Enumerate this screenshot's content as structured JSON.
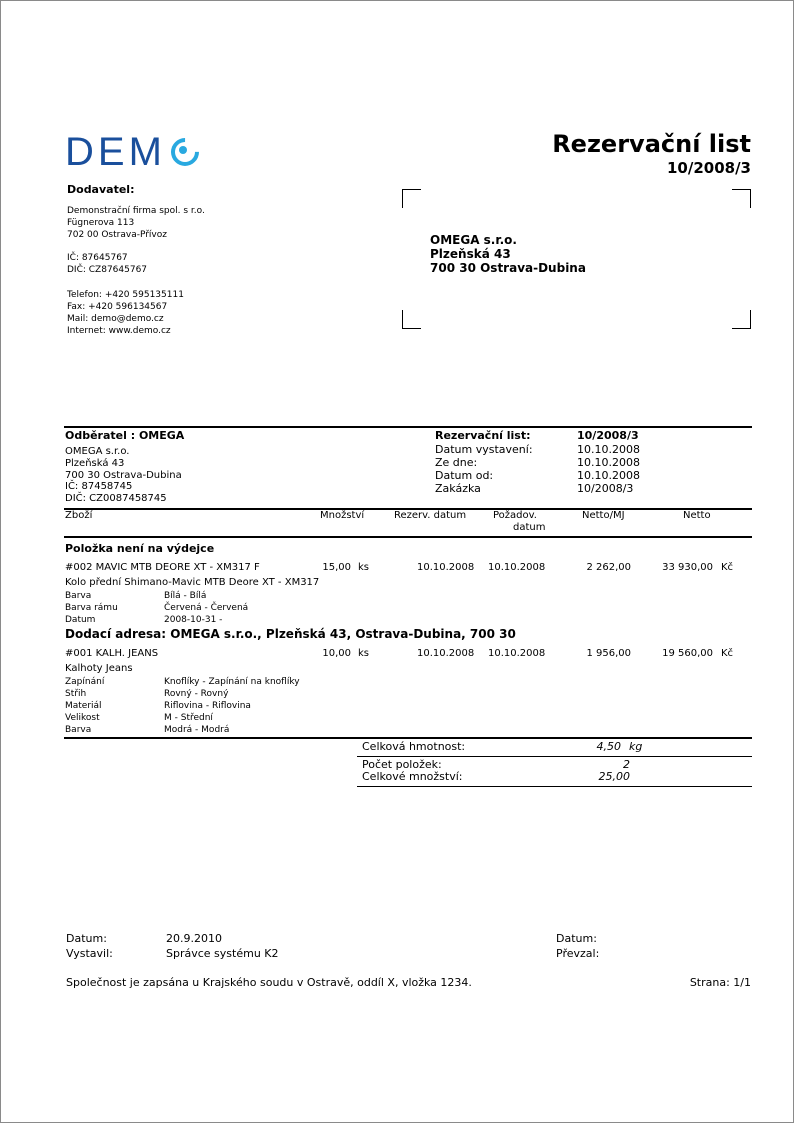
{
  "logo": {
    "text": "DEM",
    "brand_color": "#1a4f9c",
    "accent_color": "#29a9e0"
  },
  "title": "Rezervační list",
  "doc_number": "10/2008/3",
  "supplier": {
    "heading": "Dodavatel:",
    "name": "Demonstrační firma spol. s r.o.",
    "street": "Fügnerova 113",
    "city": "702 00 Ostrava-Přívoz",
    "ic": "IČ: 87645767",
    "dic": "DIČ: CZ87645767",
    "phone": "Telefon: +420  595135111",
    "fax": "Fax: +420  596134567",
    "mail": "Mail: demo@demo.cz",
    "web": "Internet: www.demo.cz"
  },
  "address": {
    "name": "OMEGA s.r.o.",
    "street": "Plzeňská 43",
    "city": "700 30  Ostrava-Dubina"
  },
  "customer": {
    "heading": "Odběratel : OMEGA",
    "name": "OMEGA s.r.o.",
    "street": "Plzeňská 43",
    "city": "700 30  Ostrava-Dubina",
    "ic": "IČ: 87458745",
    "dic": "DIČ: CZ0087458745"
  },
  "info": [
    {
      "label": "Rezervační list:",
      "value": "10/2008/3"
    },
    {
      "label": "Datum vystavení:",
      "value": "10.10.2008"
    },
    {
      "label": "Ze dne:",
      "value": "10.10.2008"
    },
    {
      "label": "Datum od:",
      "value": "10.10.2008"
    },
    {
      "label": "Zakázka",
      "value": "10/2008/3"
    }
  ],
  "columns": {
    "goods": "Zboží",
    "qty": "Množství",
    "res_date": "Rezerv. datum",
    "req_date_1": "Požadov.",
    "req_date_2": "datum",
    "unit_net": "Netto/MJ",
    "net": "Netto"
  },
  "section1": "Položka není na výdejce",
  "section2": "Dodací adresa: OMEGA s.r.o., Plzeňská 43, Ostrava-Dubina, 700 30",
  "items": [
    {
      "name": "#002 MAVIC MTB DEORE XT - XM317 F",
      "qty": "15,00",
      "unit": "ks",
      "res_date": "10.10.2008",
      "req_date": "10.10.2008",
      "unit_net": "2 262,00",
      "net": "33 930,00",
      "currency": "Kč",
      "desc": "Kolo přední Shimano-Mavic MTB Deore XT - XM317",
      "attrs": [
        {
          "k": "Barva",
          "v": "Bílá - Bílá"
        },
        {
          "k": "Barva rámu",
          "v": "Červená - Červená"
        },
        {
          "k": "Datum",
          "v": "2008-10-31 -"
        }
      ]
    },
    {
      "name": "#001 KALH. JEANS",
      "qty": "10,00",
      "unit": "ks",
      "res_date": "10.10.2008",
      "req_date": "10.10.2008",
      "unit_net": "1 956,00",
      "net": "19 560,00",
      "currency": "Kč",
      "desc": "Kalhoty Jeans",
      "attrs": [
        {
          "k": "Zapínání",
          "v": "Knoflíky - Zapínání na knoflíky"
        },
        {
          "k": "Střih",
          "v": "Rovný - Rovný"
        },
        {
          "k": "Materiál",
          "v": "Riflovina - Riflovina"
        },
        {
          "k": "Velikost",
          "v": "M - Střední"
        },
        {
          "k": "Barva",
          "v": "Modrá - Modrá"
        }
      ]
    }
  ],
  "totals": {
    "weight_label": "Celková hmotnost:",
    "weight": "4,50",
    "weight_unit": "kg",
    "count_label": "Počet položek:",
    "count": "2",
    "qty_label": "Celkové množství:",
    "qty": "25,00"
  },
  "footer": {
    "date_label": "Datum:",
    "date": "20.9.2010",
    "issued_label": "Vystavil:",
    "issued": "Správce systému K2",
    "date2_label": "Datum:",
    "received_label": "Převzal:",
    "note": "Společnost je zapsána u Krajského soudu v Ostravě, oddíl X, vložka 1234.",
    "page": "Strana: 1/1"
  }
}
